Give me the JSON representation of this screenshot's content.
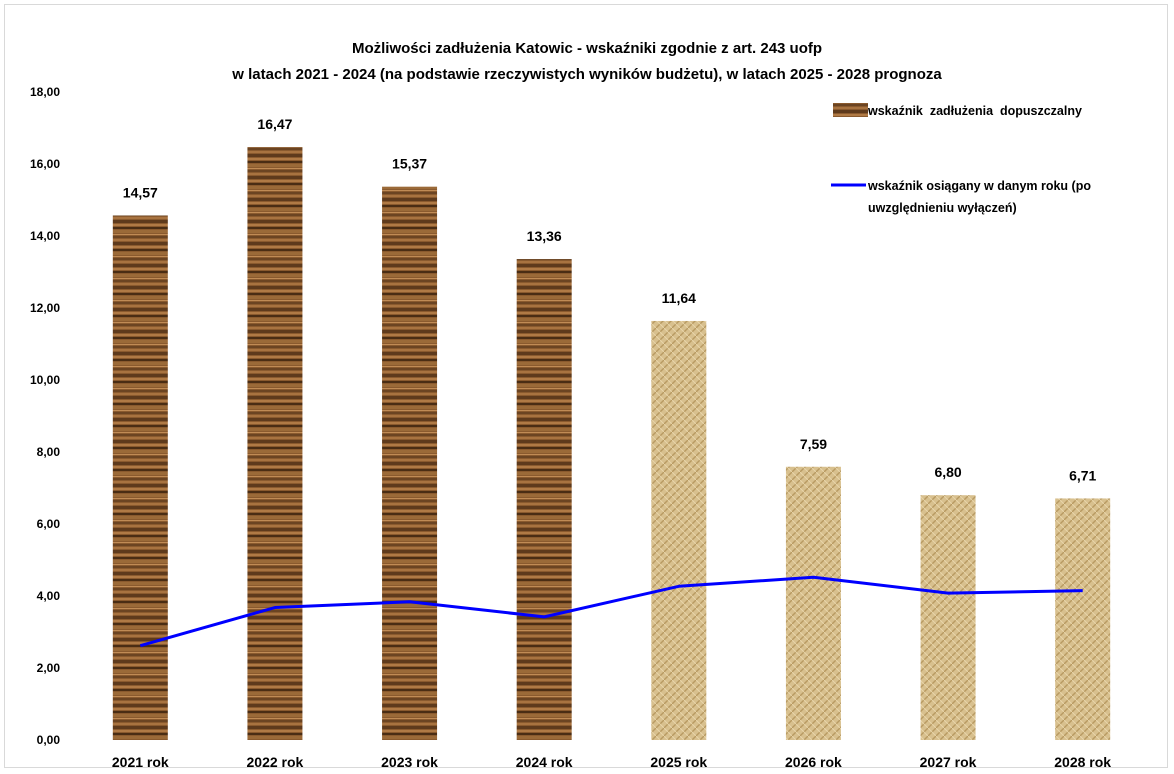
{
  "chart_data": {
    "type": "bar",
    "title": "Możliwości zadłużenia Katowic - wskaźniki zgodnie z art. 243 uofp",
    "subtitle": "w latach 2021 - 2024 (na podstawie rzeczywistych wyników budżetu), w latach 2025 - 2028 prognoza",
    "categories": [
      "2021 rok",
      "2022 rok",
      "2023 rok",
      "2024 rok",
      "2025 rok",
      "2026 rok",
      "2027 rok",
      "2028 rok"
    ],
    "ylim": [
      0,
      18
    ],
    "yticks": [
      "0,00",
      "2,00",
      "4,00",
      "6,00",
      "8,00",
      "10,00",
      "12,00",
      "14,00",
      "16,00",
      "18,00"
    ],
    "grid": false,
    "legend_position": "top-right",
    "series": [
      {
        "name": "wskaźnik  zadłużenia  dopuszczalny",
        "type": "bar",
        "values": [
          14.57,
          16.47,
          15.37,
          13.36,
          11.64,
          7.59,
          6.8,
          6.71
        ],
        "data_labels": [
          "14,57",
          "16,47",
          "15,37",
          "13,36",
          "11,64",
          "7,59",
          "6,80",
          "6,71"
        ],
        "fill_actual": "wood-texture",
        "fill_forecast": "burlap-texture"
      },
      {
        "name": "wskaźnik osiągany w danym roku (po uwzględnieniu wyłączeń)",
        "legend_lines": [
          "wskaźnik osiągany w danym roku (po",
          "uwzględnieniu wyłączeń)"
        ],
        "type": "line",
        "color": "#0000ff",
        "values": [
          2.62,
          3.68,
          3.84,
          3.42,
          4.27,
          4.52,
          4.08,
          4.15
        ]
      }
    ]
  }
}
